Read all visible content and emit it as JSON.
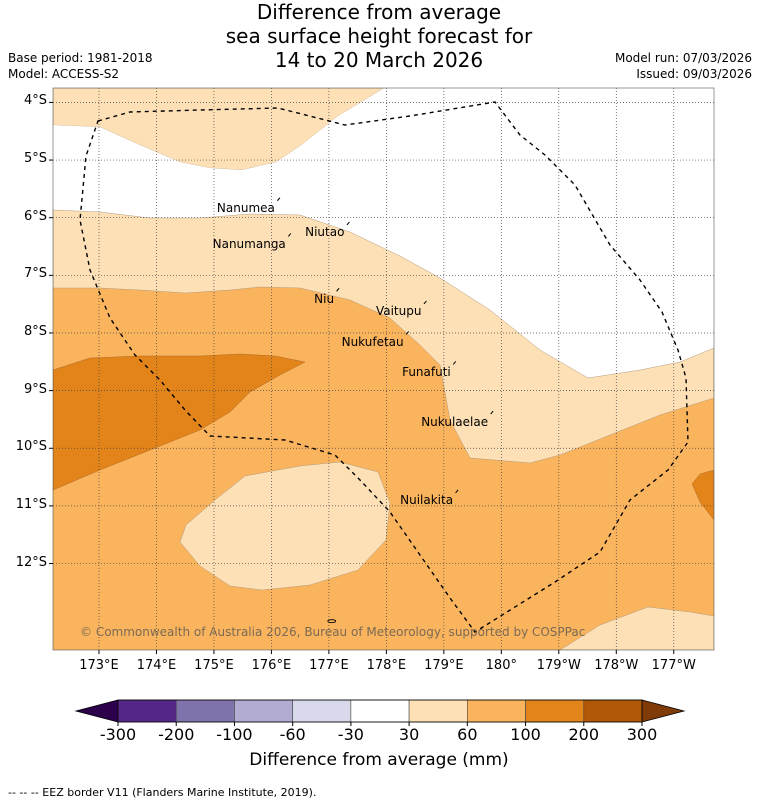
{
  "title_lines": [
    "Difference from average",
    "sea surface height forecast for",
    "14 to 20 March 2026"
  ],
  "meta": {
    "base_period": "Base period: 1981-2018",
    "model": "Model: ACCESS-S2",
    "model_run": "Model run: 07/03/2026",
    "issued": "Issued: 09/03/2026"
  },
  "copyright": "© Commonwealth of Australia 2026, Bureau of Meteorology, supported by COSPPac",
  "footer_note": "--  --  -- EEZ border V11 (Flanders Marine Institute, 2019).",
  "colors": {
    "band_30_60": "#fde0b6",
    "band_60_100": "#fab45e",
    "band_100_200": "#e3841a",
    "band_200_300": "#b15808",
    "band_over_300": "#7f3b08",
    "band_minus_30_30": "#ffffff",
    "band_minus_60_minus_30": "#d8daeb",
    "band_minus_100_minus_60": "#b2abd2",
    "band_minus_200_minus_100": "#8073ac",
    "band_minus_300_minus_200": "#542788",
    "band_under_minus_300": "#2d004b"
  },
  "chart_data": {
    "type": "heatmap",
    "title": "Difference from average sea surface height forecast for 14 to 20 March 2026",
    "xlabel": "",
    "ylabel": "",
    "x_ticks": [
      {
        "lon": 173,
        "label": "173°E"
      },
      {
        "lon": 174,
        "label": "174°E"
      },
      {
        "lon": 175,
        "label": "175°E"
      },
      {
        "lon": 176,
        "label": "176°E"
      },
      {
        "lon": 177,
        "label": "177°E"
      },
      {
        "lon": 178,
        "label": "178°E"
      },
      {
        "lon": 179,
        "label": "179°E"
      },
      {
        "lon": 180,
        "label": "180°"
      },
      {
        "lon": 181,
        "label": "179°W"
      },
      {
        "lon": 182,
        "label": "178°W"
      },
      {
        "lon": 183,
        "label": "177°W"
      }
    ],
    "y_ticks": [
      {
        "lat": -4,
        "label": "4°S"
      },
      {
        "lat": -5,
        "label": "5°S"
      },
      {
        "lat": -6,
        "label": "6°S"
      },
      {
        "lat": -7,
        "label": "7°S"
      },
      {
        "lat": -8,
        "label": "8°S"
      },
      {
        "lat": -9,
        "label": "9°S"
      },
      {
        "lat": -10,
        "label": "10°S"
      },
      {
        "lat": -11,
        "label": "11°S"
      },
      {
        "lat": -12,
        "label": "12°S"
      }
    ],
    "xlim": [
      172.2,
      183.7
    ],
    "ylim": [
      -13.5,
      -3.75
    ],
    "grid": true,
    "islands": [
      {
        "name": "Nanumea",
        "lon": 176.13,
        "lat": -5.68
      },
      {
        "name": "Nanumanga",
        "lon": 176.32,
        "lat": -6.3
      },
      {
        "name": "Niutao",
        "lon": 177.34,
        "lat": -6.1
      },
      {
        "name": "Niu",
        "lon": 177.16,
        "lat": -7.25
      },
      {
        "name": "Vaitupu",
        "lon": 178.68,
        "lat": -7.47
      },
      {
        "name": "Nukufetau",
        "lon": 178.37,
        "lat": -8.0
      },
      {
        "name": "Funafuti",
        "lon": 179.19,
        "lat": -8.52
      },
      {
        "name": "Nukulaelae",
        "lon": 179.84,
        "lat": -9.38
      },
      {
        "name": "Nuilakita",
        "lon": 179.23,
        "lat": -10.75
      }
    ],
    "colorbar": {
      "label": "Difference from average (mm)",
      "levels": [
        -300,
        -200,
        -100,
        -60,
        -30,
        30,
        60,
        100,
        200,
        300
      ],
      "tick_labels": [
        "-300",
        "-200",
        "-100",
        "-60",
        "-30",
        "30",
        "60",
        "100",
        "200",
        "300"
      ],
      "extend": "both"
    }
  }
}
